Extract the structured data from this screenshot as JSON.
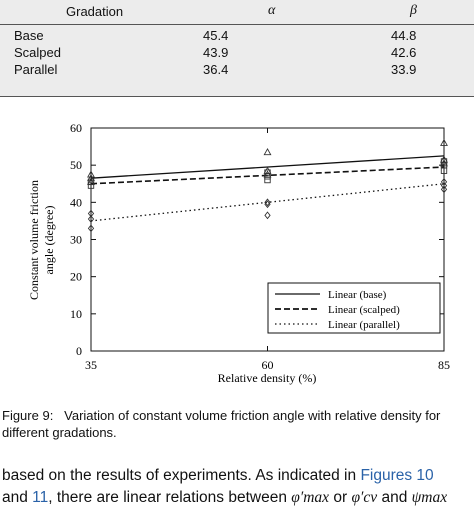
{
  "table": {
    "headers": [
      "Gradation",
      "α",
      "β"
    ],
    "rows": [
      [
        "Base",
        "45.4",
        "44.8"
      ],
      [
        "Scalped",
        "43.9",
        "42.6"
      ],
      [
        "Parallel",
        "36.4",
        "33.9"
      ]
    ]
  },
  "chart_data": {
    "type": "scatter",
    "xlabel": "Relative density (%)",
    "ylabel_line1": "Constant volume friction",
    "ylabel_line2": "angle (degree)",
    "xlim": [
      35,
      85
    ],
    "ylim": [
      0,
      60
    ],
    "x_ticks": [
      35,
      60,
      85
    ],
    "y_ticks": [
      0,
      10,
      20,
      30,
      40,
      50,
      60
    ],
    "legend_placement": "lower-right",
    "series": [
      {
        "name": "Linear (base)",
        "marker": "triangle",
        "line_style": "solid",
        "points": [
          [
            35,
            47.5
          ],
          [
            35,
            46.5
          ],
          [
            35,
            45.5
          ],
          [
            60,
            53.5
          ],
          [
            60,
            48.5
          ],
          [
            60,
            47.5
          ],
          [
            85,
            56.0
          ],
          [
            85,
            51.5
          ],
          [
            85,
            50.5
          ]
        ],
        "fit": [
          [
            35,
            46.5
          ],
          [
            85,
            52.5
          ]
        ]
      },
      {
        "name": "Linear (scalped)",
        "marker": "square",
        "line_style": "dashed",
        "points": [
          [
            35,
            45.5
          ],
          [
            35,
            44.5
          ],
          [
            60,
            48.0
          ],
          [
            60,
            47.0
          ],
          [
            60,
            46.0
          ],
          [
            85,
            51.0
          ],
          [
            85,
            50.0
          ],
          [
            85,
            48.5
          ]
        ],
        "fit": [
          [
            35,
            45.0
          ],
          [
            85,
            49.5
          ]
        ]
      },
      {
        "name": "Linear (parallel)",
        "marker": "diamond",
        "line_style": "dotted",
        "points": [
          [
            35,
            37.0
          ],
          [
            35,
            35.5
          ],
          [
            35,
            33.0
          ],
          [
            60,
            40.0
          ],
          [
            60,
            39.5
          ],
          [
            60,
            36.5
          ],
          [
            85,
            45.5
          ],
          [
            85,
            44.5
          ],
          [
            85,
            43.5
          ]
        ],
        "fit": [
          [
            35,
            35.0
          ],
          [
            85,
            45.0
          ]
        ]
      }
    ]
  },
  "caption": {
    "label": "Figure 9:",
    "text_line1": "Variation of constant volume friction angle with relative density for",
    "text_line2": "different gradations."
  },
  "body_text": {
    "line1_prefix": "based on the results of experiments. As indicated in ",
    "line1_link": "Figures 10",
    "line2_prefix": "and ",
    "line2_link": "11",
    "line2_mid": ", there are linear relations between ",
    "phi_max": "φ′max",
    "or": " or ",
    "phi_cv": "φ′cv",
    "and": " and ",
    "psi_max": "ψmax"
  }
}
